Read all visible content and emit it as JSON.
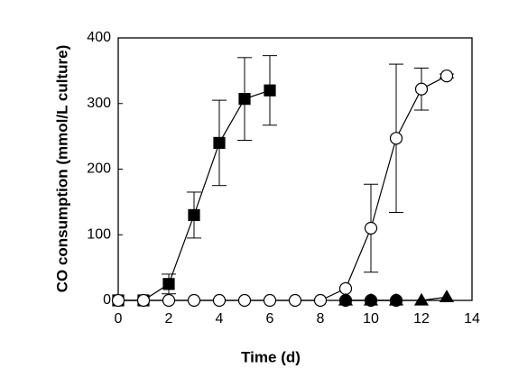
{
  "chart_data": {
    "type": "line",
    "x_label": "Time (d)",
    "y_label": "CO consumption (mmol/L culture)",
    "xlim": [
      0,
      14
    ],
    "xticks": [
      0,
      2,
      4,
      6,
      8,
      10,
      12,
      14
    ],
    "ylim": [
      0,
      400
    ],
    "yticks": [
      0,
      100,
      200,
      300,
      400
    ],
    "series": [
      {
        "marker": "square",
        "filled": true,
        "color": "#000000",
        "x": [
          0,
          1,
          2,
          3,
          4,
          5,
          6
        ],
        "values": [
          0,
          0,
          25,
          130,
          240,
          307,
          320
        ],
        "errors": [
          null,
          null,
          15,
          35,
          65,
          63,
          53
        ]
      },
      {
        "marker": "circle",
        "filled": false,
        "color": "#000000",
        "x": [
          0,
          1,
          2,
          3,
          4,
          5,
          6,
          7,
          8,
          9,
          10,
          11,
          12,
          13
        ],
        "values": [
          0,
          0,
          0,
          0,
          0,
          0,
          0,
          0,
          0,
          18,
          110,
          247,
          322,
          342
        ],
        "errors": [
          null,
          null,
          null,
          null,
          null,
          null,
          null,
          null,
          null,
          null,
          67,
          113,
          32,
          3
        ]
      },
      {
        "marker": "circle",
        "filled": true,
        "color": "#000000",
        "x": [
          9,
          10,
          11
        ],
        "values": [
          0,
          0,
          0
        ],
        "errors": [
          null,
          null,
          null
        ]
      },
      {
        "marker": "triangle",
        "filled": true,
        "color": "#000000",
        "x": [
          9,
          10,
          11,
          12,
          13
        ],
        "values": [
          0,
          0,
          0,
          0,
          5
        ],
        "errors": [
          null,
          null,
          null,
          null,
          null
        ]
      }
    ]
  }
}
